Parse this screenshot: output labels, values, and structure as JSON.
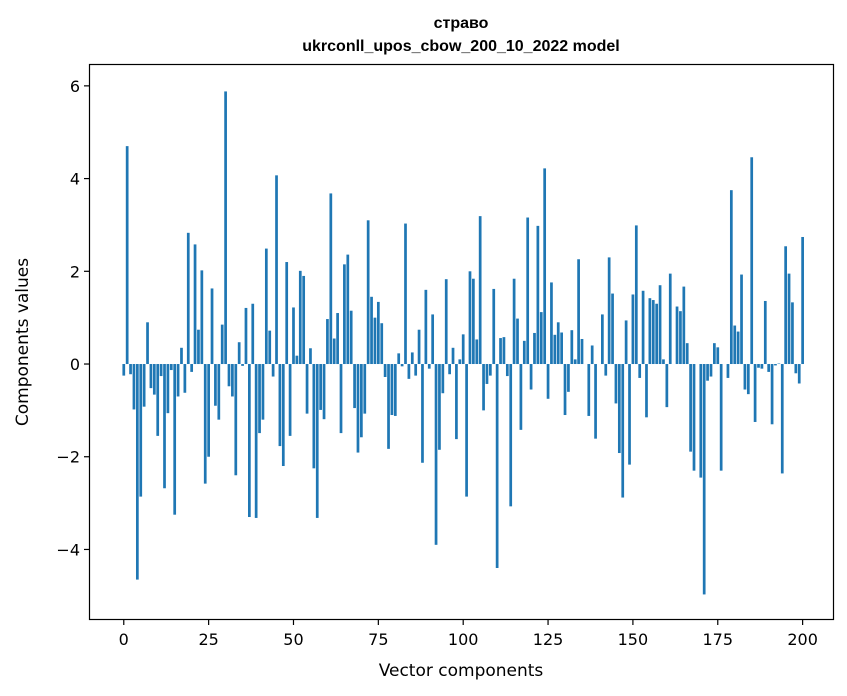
{
  "chart_data": {
    "type": "bar",
    "title": [
      "страво",
      "ukrconll_upos_cbow_200_10_2022 model"
    ],
    "xlabel": "Vector components",
    "ylabel": "Components values",
    "xlim": [
      -9.95,
      208.95
    ],
    "ylim": [
      -5.5,
      6.45
    ],
    "x_ticks": [
      0,
      25,
      50,
      75,
      100,
      125,
      150,
      175,
      200
    ],
    "y_ticks": [
      -4,
      -2,
      0,
      2,
      4,
      6
    ],
    "y_tick_labels": [
      "−4",
      "−2",
      "0",
      "2",
      "4",
      "6"
    ],
    "bar_color": "#1f77b4",
    "grid": false,
    "values": [
      -0.25,
      4.7,
      -0.22,
      -0.98,
      -4.65,
      -2.86,
      -0.92,
      0.9,
      -0.52,
      -0.66,
      -1.55,
      -0.26,
      -2.68,
      -1.06,
      -0.13,
      -3.25,
      -0.7,
      0.35,
      -0.62,
      2.83,
      -0.17,
      2.58,
      0.74,
      2.02,
      -2.58,
      -2.0,
      1.63,
      -0.9,
      -1.2,
      0.85,
      5.88,
      -0.48,
      -0.7,
      -2.4,
      0.47,
      -0.04,
      1.21,
      -3.3,
      1.3,
      -3.32,
      -1.49,
      -1.2,
      2.49,
      0.72,
      -0.27,
      4.07,
      -1.77,
      -2.2,
      2.2,
      -1.55,
      1.22,
      0.18,
      2.01,
      1.9,
      -1.07,
      0.34,
      -2.25,
      -3.32,
      -0.99,
      -1.19,
      0.97,
      3.68,
      0.55,
      1.1,
      -1.49,
      2.15,
      2.36,
      1.15,
      -0.95,
      -1.91,
      -1.58,
      -1.07,
      3.1,
      1.45,
      1.0,
      1.34,
      0.88,
      -0.28,
      -1.83,
      -1.1,
      -1.12,
      0.23,
      -0.05,
      3.03,
      -0.32,
      0.25,
      -0.25,
      0.74,
      -2.13,
      1.6,
      -0.1,
      1.07,
      -3.9,
      -1.85,
      -0.63,
      1.83,
      -0.22,
      0.35,
      -1.62,
      0.1,
      0.64,
      -2.86,
      2.0,
      1.84,
      0.53,
      3.19,
      -1.0,
      -0.43,
      -0.25,
      1.62,
      -4.4,
      0.56,
      0.58,
      -0.26,
      -3.07,
      1.84,
      0.98,
      -1.42,
      0.5,
      3.16,
      -0.55,
      0.67,
      2.98,
      1.12,
      4.22,
      -0.75,
      1.76,
      0.63,
      0.9,
      0.68,
      -1.1,
      -0.6,
      0.73,
      0.1,
      2.26,
      0.54,
      0.0,
      -1.12,
      0.4,
      -1.61,
      0.0,
      1.07,
      -0.25,
      2.3,
      1.52,
      -0.85,
      -1.92,
      -2.88,
      0.94,
      -2.17,
      1.5,
      2.99,
      -0.3,
      1.58,
      -1.15,
      1.42,
      1.38,
      1.3,
      1.7,
      0.1,
      -0.93,
      1.95,
      0.0,
      1.24,
      1.14,
      1.67,
      0.45,
      -1.89,
      -2.3,
      0.0,
      -2.45,
      -4.97,
      -0.36,
      -0.27,
      0.45,
      0.36,
      -2.3,
      0.0,
      -0.3,
      3.75,
      0.83,
      0.7,
      1.93,
      -0.55,
      -0.65,
      4.46,
      -1.25,
      -0.08,
      -0.1,
      1.36,
      -0.17,
      -1.3,
      -0.03,
      0.01,
      -2.36,
      2.54,
      1.95,
      1.33,
      -0.2,
      -0.42,
      2.74
    ]
  }
}
